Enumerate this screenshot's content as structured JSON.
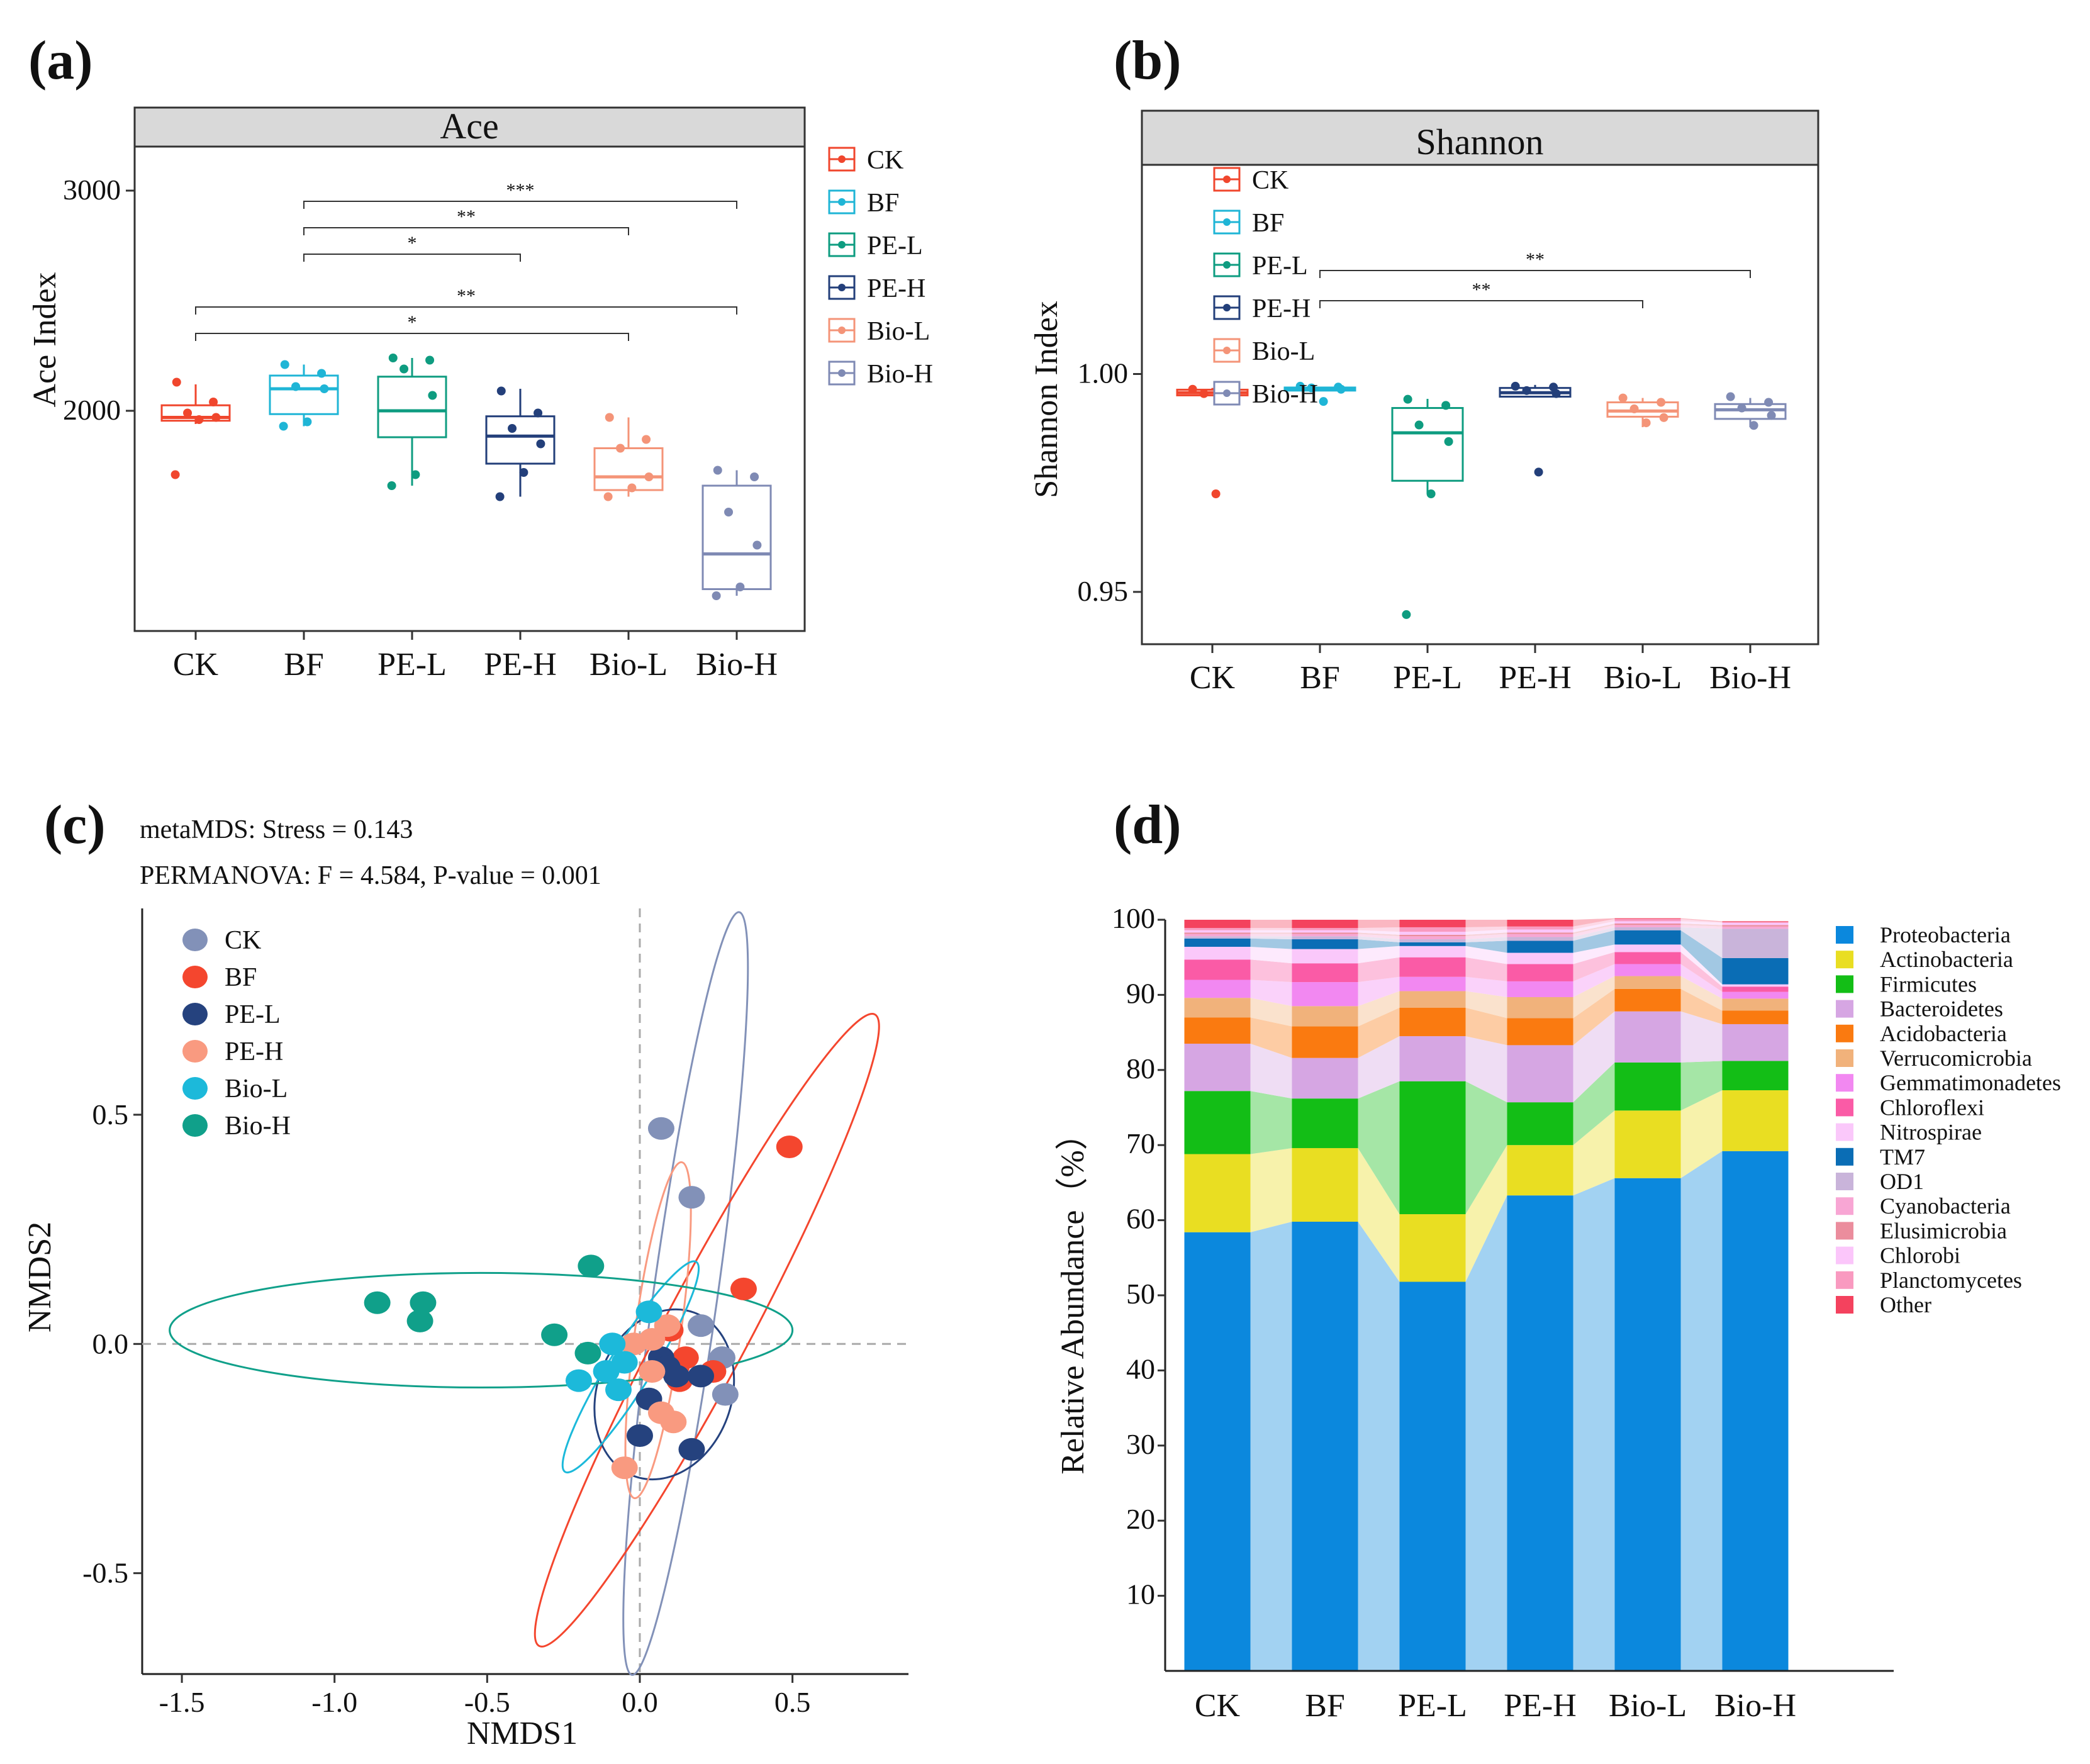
{
  "panels": {
    "a": {
      "label": "(a)",
      "strip": "Ace",
      "ylabel": "Ace   Index",
      "yticks": [
        2000,
        3000
      ],
      "categories": [
        "CK",
        "BF",
        "PE-L",
        "PE-H",
        "Bio-L",
        "Bio-H"
      ],
      "legend": [
        "CK",
        "BF",
        "PE-L",
        "PE-H",
        "Bio-L",
        "Bio-H"
      ]
    },
    "b": {
      "label": "(b)",
      "strip": "Shannon",
      "ylabel": "Shannon   Index",
      "yticks": [
        "0.95",
        "1.00"
      ],
      "categories": [
        "CK",
        "BF",
        "PE-L",
        "PE-H",
        "Bio-L",
        "Bio-H"
      ],
      "legend": [
        "CK",
        "BF",
        "PE-L",
        "PE-H",
        "Bio-L",
        "Bio-H"
      ]
    },
    "c": {
      "label": "(c)",
      "stress_text": "metaMDS: Stress = 0.143",
      "permanova_text": "PERMANOVA: F = 4.584, P-value = 0.001",
      "xlabel": "NMDS1",
      "ylabel": "NMDS2",
      "xticks": [
        "-1.5",
        "-1.0",
        "-0.5",
        "0.0",
        "0.5"
      ],
      "yticks": [
        "0.5",
        "0.0",
        "-0.5"
      ],
      "legend": [
        "CK",
        "BF",
        "PE-L",
        "PE-H",
        "Bio-L",
        "Bio-H"
      ]
    },
    "d": {
      "label": "(d)",
      "ylabel": "Relative Abundance（%）",
      "yticks": [
        "10",
        "20",
        "30",
        "40",
        "50",
        "60",
        "70",
        "80",
        "90",
        "100"
      ],
      "categories": [
        "CK",
        "BF",
        "PE-L",
        "PE-H",
        "Bio-L",
        "Bio-H"
      ]
    }
  },
  "colors": {
    "groups_ab": [
      "#F0462D",
      "#1FB5D6",
      "#0E9C80",
      "#233F7A",
      "#F49478",
      "#7F8AB4"
    ],
    "groups_c": [
      "#8291B8",
      "#F4462E",
      "#25427E",
      "#F99A80",
      "#1CB9DA",
      "#10A08A"
    ],
    "phyla": [
      "#0B88DD",
      "#E9DE22",
      "#13BE16",
      "#D6A6E3",
      "#FA7A10",
      "#F1B27B",
      "#F288F1",
      "#FA5BA6",
      "#FAC8FA",
      "#0A6DB5",
      "#C9B4DA",
      "#F8A6D4",
      "#EB8D9D",
      "#FBC6FA",
      "#F99AC0",
      "#F4425E"
    ]
  },
  "chart_data": [
    {
      "type": "box",
      "title": "Ace",
      "ylabel": "Ace   Index",
      "ylim": [
        1000,
        3200
      ],
      "categories": [
        "CK",
        "BF",
        "PE-L",
        "PE-H",
        "Bio-L",
        "Bio-H"
      ],
      "boxes": [
        {
          "q1": 1955,
          "median": 1970,
          "q3": 2025,
          "whisker_low": 1940,
          "whisker_high": 2120
        },
        {
          "q1": 1985,
          "median": 2100,
          "q3": 2160,
          "whisker_low": 1930,
          "whisker_high": 2210
        },
        {
          "q1": 1880,
          "median": 2000,
          "q3": 2155,
          "whisker_low": 1660,
          "whisker_high": 2240
        },
        {
          "q1": 1760,
          "median": 1885,
          "q3": 1975,
          "whisker_low": 1610,
          "whisker_high": 2100
        },
        {
          "q1": 1640,
          "median": 1700,
          "q3": 1830,
          "whisker_low": 1610,
          "whisker_high": 1970
        },
        {
          "q1": 1190,
          "median": 1350,
          "q3": 1660,
          "whisker_low": 1160,
          "whisker_high": 1730
        }
      ],
      "points": [
        [
          2130,
          2040,
          1990,
          1970,
          1960,
          1710
        ],
        [
          2210,
          2170,
          2110,
          2100,
          1950,
          1930
        ],
        [
          2240,
          2230,
          2190,
          2070,
          1710,
          1660
        ],
        [
          2090,
          1990,
          1920,
          1850,
          1720,
          1610
        ],
        [
          1970,
          1870,
          1830,
          1700,
          1650,
          1610
        ],
        [
          1730,
          1700,
          1540,
          1390,
          1200,
          1160
        ]
      ],
      "significance": [
        {
          "from": "BF",
          "to": "Bio-H",
          "label": "***"
        },
        {
          "from": "BF",
          "to": "Bio-L",
          "label": "**"
        },
        {
          "from": "BF",
          "to": "PE-H",
          "label": "*"
        },
        {
          "from": "CK",
          "to": "Bio-H",
          "label": "**"
        },
        {
          "from": "CK",
          "to": "Bio-L",
          "label": "*"
        }
      ]
    },
    {
      "type": "box",
      "title": "Shannon",
      "ylabel": "Shannon   Index",
      "ylim": [
        0.938,
        1.048
      ],
      "categories": [
        "CK",
        "BF",
        "PE-L",
        "PE-H",
        "Bio-L",
        "Bio-H"
      ],
      "boxes": [
        {
          "q1": 0.9951,
          "median": 0.9957,
          "q3": 0.9964,
          "whisker_low": 0.9951,
          "whisker_high": 0.9968
        },
        {
          "q1": 0.9962,
          "median": 0.9966,
          "q3": 0.9969,
          "whisker_low": 0.9962,
          "whisker_high": 0.9971
        },
        {
          "q1": 0.9755,
          "median": 0.9865,
          "q3": 0.9922,
          "whisker_low": 0.9725,
          "whisker_high": 0.9943
        },
        {
          "q1": 0.9948,
          "median": 0.9957,
          "q3": 0.9968,
          "whisker_low": 0.9948,
          "whisker_high": 0.9975
        },
        {
          "q1": 0.9902,
          "median": 0.9915,
          "q3": 0.9935,
          "whisker_low": 0.9878,
          "whisker_high": 0.9945
        },
        {
          "q1": 0.9897,
          "median": 0.9918,
          "q3": 0.9931,
          "whisker_low": 0.9878,
          "whisker_high": 0.9945
        }
      ],
      "points": [
        [
          0.9965,
          0.996,
          0.9955,
          0.995,
          0.9725
        ],
        [
          0.9972,
          0.997,
          0.9968,
          0.9965,
          0.9937
        ],
        [
          0.9942,
          0.9928,
          0.9883,
          0.9845,
          0.9725,
          0.9448
        ],
        [
          0.9972,
          0.997,
          0.9962,
          0.9955,
          0.9775
        ],
        [
          0.9945,
          0.9935,
          0.992,
          0.99,
          0.9888
        ],
        [
          0.9948,
          0.9935,
          0.9922,
          0.9905,
          0.9882
        ]
      ],
      "significance": [
        {
          "from": "BF",
          "to": "Bio-H",
          "label": "**"
        },
        {
          "from": "BF",
          "to": "Bio-L",
          "label": "**"
        }
      ]
    },
    {
      "type": "scatter",
      "xlabel": "NMDS1",
      "ylabel": "NMDS2",
      "xlim": [
        -1.63,
        0.88
      ],
      "ylim": [
        -0.72,
        0.95
      ],
      "series": [
        {
          "name": "CK",
          "points": [
            [
              0.07,
              0.47
            ],
            [
              0.17,
              0.32
            ],
            [
              0.2,
              0.04
            ],
            [
              0.27,
              -0.03
            ],
            [
              0.28,
              -0.11
            ]
          ]
        },
        {
          "name": "BF",
          "points": [
            [
              0.49,
              0.43
            ],
            [
              0.34,
              0.12
            ],
            [
              0.1,
              0.03
            ],
            [
              0.15,
              -0.03
            ],
            [
              0.24,
              -0.06
            ],
            [
              0.12,
              -0.05
            ],
            [
              0.13,
              -0.08
            ]
          ]
        },
        {
          "name": "PE-L",
          "points": [
            [
              0.07,
              -0.03
            ],
            [
              0.09,
              -0.05
            ],
            [
              0.12,
              -0.07
            ],
            [
              0.2,
              -0.07
            ],
            [
              0.03,
              -0.12
            ],
            [
              0.0,
              -0.2
            ],
            [
              0.17,
              -0.23
            ]
          ]
        },
        {
          "name": "PE-H",
          "points": [
            [
              0.09,
              0.04
            ],
            [
              0.04,
              0.01
            ],
            [
              -0.02,
              0.0
            ],
            [
              0.04,
              -0.06
            ],
            [
              0.07,
              -0.15
            ],
            [
              0.11,
              -0.17
            ],
            [
              -0.05,
              -0.27
            ]
          ]
        },
        {
          "name": "Bio-L",
          "points": [
            [
              0.03,
              0.07
            ],
            [
              -0.09,
              0.0
            ],
            [
              -0.05,
              -0.04
            ],
            [
              -0.11,
              -0.06
            ],
            [
              -0.2,
              -0.08
            ],
            [
              -0.07,
              -0.1
            ]
          ]
        },
        {
          "name": "Bio-H",
          "points": [
            [
              -0.86,
              0.09
            ],
            [
              -0.71,
              0.09
            ],
            [
              -0.72,
              0.05
            ],
            [
              -0.16,
              0.17
            ],
            [
              -0.28,
              0.02
            ],
            [
              -0.17,
              -0.02
            ]
          ]
        }
      ],
      "ellipses": [
        {
          "name": "CK",
          "center": [
            0.15,
            0.11
          ],
          "rx": 0.105,
          "ry": 0.84,
          "angle_deg": 8
        },
        {
          "name": "BF",
          "center": [
            0.22,
            0.03
          ],
          "rx": 0.14,
          "ry": 0.78,
          "angle_deg": 28
        },
        {
          "name": "PE-L",
          "center": [
            0.08,
            -0.11
          ],
          "rx": 0.22,
          "ry": 0.19,
          "angle_deg": 20
        },
        {
          "name": "PE-H",
          "center": [
            0.06,
            0.03
          ],
          "rx": 0.075,
          "ry": 0.37,
          "angle_deg": 8
        },
        {
          "name": "Bio-L",
          "center": [
            -0.03,
            -0.05
          ],
          "rx": 0.07,
          "ry": 0.27,
          "angle_deg": 32
        },
        {
          "name": "Bio-H",
          "center": [
            -0.52,
            0.03
          ],
          "rx": 1.02,
          "ry": 0.125,
          "angle_deg": 0
        }
      ]
    },
    {
      "type": "stacked-bar",
      "ylabel": "Relative Abundance（%）",
      "ylim": [
        0,
        100
      ],
      "categories": [
        "CK",
        "BF",
        "PE-L",
        "PE-H",
        "Bio-L",
        "Bio-H"
      ],
      "series": [
        {
          "name": "Proteobacteria",
          "values": [
            58.4,
            59.8,
            51.8,
            63.3,
            65.6,
            69.2
          ]
        },
        {
          "name": "Actinobacteria",
          "values": [
            10.4,
            9.8,
            9.0,
            6.7,
            9.0,
            8.1
          ]
        },
        {
          "name": "Firmicutes",
          "values": [
            8.4,
            6.6,
            17.7,
            5.7,
            6.4,
            3.9
          ]
        },
        {
          "name": "Bacteroidetes",
          "values": [
            6.3,
            5.4,
            6.0,
            7.6,
            6.8,
            4.9
          ]
        },
        {
          "name": "Acidobacteria",
          "values": [
            3.5,
            4.2,
            3.8,
            3.6,
            3.0,
            1.8
          ]
        },
        {
          "name": "Verrucomicrobia",
          "values": [
            2.6,
            2.7,
            2.2,
            2.8,
            1.7,
            1.6
          ]
        },
        {
          "name": "Gemmatimonadetes",
          "values": [
            2.4,
            3.2,
            1.9,
            2.1,
            1.6,
            0.9
          ]
        },
        {
          "name": "Chloroflexi",
          "values": [
            2.7,
            2.5,
            2.6,
            2.3,
            1.6,
            0.7
          ]
        },
        {
          "name": "Nitrospirae",
          "values": [
            1.7,
            1.9,
            1.5,
            1.5,
            1.0,
            0.3
          ]
        },
        {
          "name": "TM7",
          "values": [
            1.1,
            1.3,
            0.5,
            1.6,
            1.9,
            3.5
          ]
        },
        {
          "name": "OD1",
          "values": [
            0.3,
            0.4,
            0.4,
            0.5,
            0.4,
            3.9
          ]
        },
        {
          "name": "Cyanobacteria",
          "values": [
            0.3,
            0.3,
            0.4,
            0.4,
            0.3,
            0.3
          ]
        },
        {
          "name": "Elusimicrobia",
          "values": [
            0.2,
            0.2,
            0.2,
            0.2,
            0.2,
            0.2
          ]
        },
        {
          "name": "Chlorobi",
          "values": [
            0.3,
            0.3,
            0.4,
            0.4,
            0.3,
            0.3
          ]
        },
        {
          "name": "Planctomycetes",
          "values": [
            0.3,
            0.3,
            0.6,
            0.4,
            0.3,
            0.1
          ]
        },
        {
          "name": "Other",
          "values": [
            1.1,
            1.1,
            1.0,
            0.9,
            0.1,
            0.1
          ]
        }
      ]
    }
  ]
}
